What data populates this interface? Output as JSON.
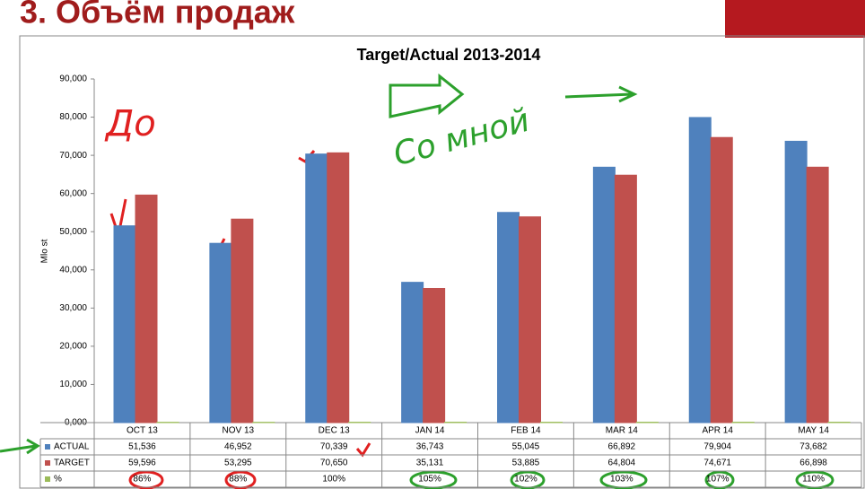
{
  "slide_title": "3. Объём продаж",
  "chart_data": {
    "type": "bar",
    "title": "Target/Actual 2013-2014",
    "y_label": "Mlo st",
    "categories": [
      "OCT 13",
      "NOV 13",
      "DEC 13",
      "JAN 14",
      "FEB 14",
      "MAR 14",
      "APR 14",
      "MAY 14"
    ],
    "series": [
      {
        "name": "ACTUAL",
        "color": "#4f81bd",
        "values": [
          51536,
          46952,
          70339,
          36743,
          55045,
          66892,
          79904,
          73682
        ],
        "value_labels": [
          "51,536",
          "46,952",
          "70,339",
          "36,743",
          "55,045",
          "66,892",
          "79,904",
          "73,682"
        ]
      },
      {
        "name": "TARGET",
        "color": "#c0504d",
        "values": [
          59596,
          53295,
          70650,
          35131,
          53885,
          64804,
          74671,
          66898
        ],
        "value_labels": [
          "59,596",
          "53,295",
          "70,650",
          "35,131",
          "53,885",
          "64,804",
          "74,671",
          "66,898"
        ]
      },
      {
        "name": "%",
        "color": "#9bbb59",
        "values": [
          86,
          88,
          100,
          105,
          102,
          103,
          107,
          110
        ],
        "value_labels": [
          "86%",
          "88%",
          "100%",
          "105%",
          "102%",
          "103%",
          "107%",
          "110%"
        ]
      }
    ],
    "ylim": [
      0,
      90000
    ],
    "yticks": [
      {
        "value": 0,
        "label": "0,000"
      },
      {
        "value": 10000,
        "label": "10,000"
      },
      {
        "value": 20000,
        "label": "20,000"
      },
      {
        "value": 30000,
        "label": "30,000"
      },
      {
        "value": 40000,
        "label": "40,000"
      },
      {
        "value": 50000,
        "label": "50,000"
      },
      {
        "value": 60000,
        "label": "60,000"
      },
      {
        "value": 70000,
        "label": "70,000"
      },
      {
        "value": 80000,
        "label": "80,000"
      },
      {
        "value": 90000,
        "label": "90,000"
      }
    ],
    "grid": false,
    "data_table": true,
    "annotations": [
      "До",
      "Со мной"
    ]
  }
}
